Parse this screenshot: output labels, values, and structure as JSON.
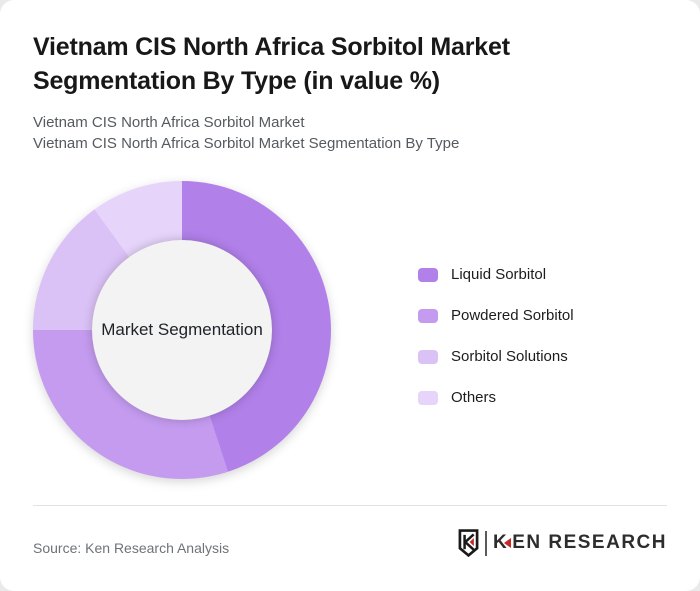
{
  "header": {
    "title": "Vietnam CIS North Africa Sorbitol Market Segmentation By Type (in value %)",
    "subtitle1": "Vietnam CIS North Africa Sorbitol Market",
    "subtitle2": "Vietnam CIS North Africa Sorbitol Market Segmentation By Type"
  },
  "chart_data": {
    "type": "pie",
    "variant": "donut",
    "title": "Vietnam CIS North Africa Sorbitol Market Segmentation By Type (in value %)",
    "unit": "value %",
    "categories": [
      "Liquid Sorbitol",
      "Powdered Sorbitol",
      "Sorbitol Solutions",
      "Others"
    ],
    "values": [
      45,
      30,
      15,
      10
    ],
    "colors": [
      "#B180E9",
      "#C49BEF",
      "#DBC2F6",
      "#E6D4FA"
    ],
    "center_label": "Market Segmentation",
    "center_fill": "#f2f3f2",
    "start_angle_deg": 0,
    "direction": "clockwise",
    "legend_position": "right",
    "data_labels": "none"
  },
  "footer": {
    "source": "Source: Ken Research Analysis",
    "brand_k": "K",
    "brand_rest": "EN RESEARCH",
    "brand_red": "#c62828"
  }
}
